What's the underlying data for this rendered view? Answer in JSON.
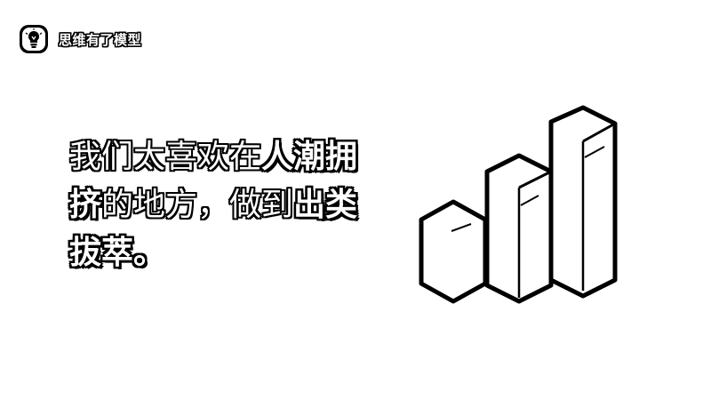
{
  "brand": {
    "name": "思维有了模型",
    "icon": "lightbulb-icon"
  },
  "headline": {
    "segments": [
      {
        "text": "我们太喜欢在",
        "style": "light"
      },
      {
        "text": "人潮拥挤",
        "style": "bold"
      },
      {
        "text": "的地方，做到",
        "style": "light"
      },
      {
        "text": "出类拔萃",
        "style": "bold"
      },
      {
        "text": "。",
        "style": "bold"
      }
    ]
  },
  "illustration": {
    "icon": "bar-chart-icon",
    "bar_levels": [
      0.45,
      0.68,
      1.0
    ]
  }
}
